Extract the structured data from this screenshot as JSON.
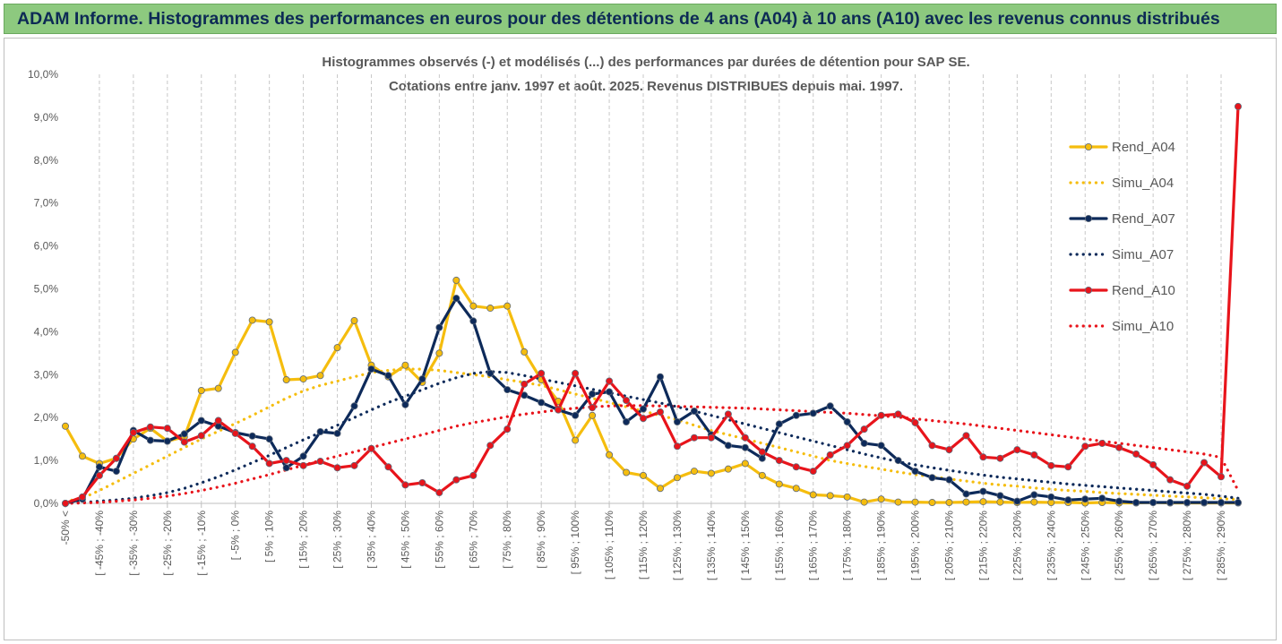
{
  "banner": {
    "title": "ADAM Informe. Histogrammes des performances en euros pour des détentions de 4 ans (A04) à 10 ans (A10) avec les revenus connus distribués"
  },
  "colors": {
    "banner_bg": "#8dc97f",
    "banner_text": "#0d2a55",
    "A04": "#f5bd0e",
    "A07": "#0d2a5a",
    "A10": "#e8141b"
  },
  "chart_data": {
    "type": "line",
    "title_lines": [
      "Histogrammes observés (-) et modélisés (...) des performances par durées de détention pour SAP SE.",
      "Cotations entre janv. 1997 et août. 2025. Revenus DISTRIBUES depuis mai. 1997."
    ],
    "xlabel": "",
    "ylabel": "",
    "ylim": [
      0,
      10
    ],
    "y_ticks": [
      "0,0%",
      "1,0%",
      "2,0%",
      "3,0%",
      "4,0%",
      "5,0%",
      "6,0%",
      "7,0%",
      "8,0%",
      "9,0%",
      "10,0%"
    ],
    "grid": "vertical dashed",
    "legend_position": "right",
    "x_tick_labels": [
      "-50% <",
      "[ -45% ; -40%",
      "[ -35% ; -30%",
      "[ -25% ; -20%",
      "[ -15% ; -10%",
      "[ -5% ; 0%",
      "[ 5% ; 10%",
      "[ 15% ; 20%",
      "[ 25% ; 30%",
      "[ 35% ; 40%",
      "[ 45% ; 50%",
      "[ 55% ; 60%",
      "[ 65% ; 70%",
      "[ 75% ; 80%",
      "[ 85% ; 90%",
      "[ 95% ; 100%",
      "[ 105% ; 110%",
      "[ 115% ; 120%",
      "[ 125% ; 130%",
      "[ 135% ; 140%",
      "[ 145% ; 150%",
      "[ 155% ; 160%",
      "[ 165% ; 170%",
      "[ 175% ; 180%",
      "[ 185% ; 190%",
      "[ 195% ; 200%",
      "[ 205% ; 210%",
      "[ 215% ; 220%",
      "[ 225% ; 230%",
      "[ 235% ; 240%",
      "[ 245% ; 250%",
      "[ 255% ; 260%",
      "[ 265% ; 270%",
      "[ 275% ; 280%",
      "[ 285% ; 290%"
    ],
    "series": [
      {
        "name": "Rend_A04",
        "style": "solid",
        "marker": true,
        "color": "#f5bd0e",
        "values": [
          1.8,
          1.1,
          0.93,
          1.05,
          1.5,
          1.75,
          1.45,
          1.55,
          2.63,
          2.68,
          3.52,
          4.27,
          4.23,
          2.88,
          2.9,
          2.98,
          3.63,
          4.26,
          3.22,
          2.95,
          3.22,
          2.82,
          3.5,
          5.2,
          4.6,
          4.55,
          4.6,
          3.53,
          2.88,
          2.38,
          1.47,
          2.05,
          1.13,
          0.72,
          0.65,
          0.35,
          0.6,
          0.75,
          0.7,
          0.8,
          0.93,
          0.65,
          0.45,
          0.35,
          0.2,
          0.18,
          0.15,
          0.03,
          0.1,
          0.03,
          0.03,
          0.02,
          0.02,
          0.03,
          0.04,
          0.03,
          0.02,
          0.03,
          0.02,
          0.02,
          0.01,
          0.02,
          0.01,
          0.01,
          0.02,
          0.01,
          0.01,
          0.01,
          0.01,
          0.01
        ]
      },
      {
        "name": "Simu_A04",
        "style": "dotted",
        "marker": false,
        "color": "#f5bd0e",
        "values": [
          0.05,
          0.12,
          0.3,
          0.5,
          0.7,
          0.9,
          1.1,
          1.3,
          1.5,
          1.68,
          1.86,
          2.05,
          2.25,
          2.45,
          2.62,
          2.75,
          2.85,
          2.95,
          3.05,
          3.1,
          3.13,
          3.13,
          3.1,
          3.05,
          3.0,
          2.95,
          2.88,
          2.82,
          2.75,
          2.65,
          2.55,
          2.45,
          2.35,
          2.25,
          2.15,
          2.05,
          1.95,
          1.82,
          1.7,
          1.6,
          1.5,
          1.4,
          1.3,
          1.2,
          1.1,
          1.0,
          0.93,
          0.86,
          0.8,
          0.73,
          0.67,
          0.62,
          0.57,
          0.52,
          0.47,
          0.43,
          0.4,
          0.36,
          0.33,
          0.3,
          0.28,
          0.25,
          0.23,
          0.21,
          0.19,
          0.17,
          0.15,
          0.13,
          0.11,
          0.09
        ]
      },
      {
        "name": "Rend_A07",
        "style": "solid",
        "marker": true,
        "color": "#0d2a5a",
        "values": [
          0.0,
          0.1,
          0.85,
          0.75,
          1.7,
          1.47,
          1.45,
          1.62,
          1.93,
          1.8,
          1.65,
          1.57,
          1.5,
          0.83,
          1.1,
          1.67,
          1.63,
          2.27,
          3.13,
          2.98,
          2.3,
          2.9,
          4.1,
          4.78,
          4.25,
          3.03,
          2.65,
          2.52,
          2.35,
          2.18,
          2.05,
          2.55,
          2.6,
          1.9,
          2.2,
          2.95,
          1.9,
          2.15,
          1.6,
          1.35,
          1.3,
          1.05,
          1.85,
          2.05,
          2.1,
          2.27,
          1.9,
          1.4,
          1.35,
          1.0,
          0.75,
          0.6,
          0.55,
          0.22,
          0.28,
          0.18,
          0.05,
          0.2,
          0.15,
          0.08,
          0.1,
          0.12,
          0.05,
          0.02,
          0.02,
          0.02,
          0.02,
          0.02,
          0.02,
          0.02
        ]
      },
      {
        "name": "Simu_A07",
        "style": "dotted",
        "marker": false,
        "color": "#0d2a5a",
        "values": [
          0.0,
          0.02,
          0.05,
          0.08,
          0.12,
          0.18,
          0.25,
          0.35,
          0.48,
          0.62,
          0.78,
          0.95,
          1.12,
          1.3,
          1.48,
          1.65,
          1.82,
          2.0,
          2.18,
          2.35,
          2.5,
          2.65,
          2.8,
          2.93,
          3.03,
          3.07,
          3.05,
          2.98,
          2.9,
          2.82,
          2.74,
          2.66,
          2.58,
          2.5,
          2.42,
          2.34,
          2.25,
          2.15,
          2.05,
          1.95,
          1.85,
          1.75,
          1.65,
          1.55,
          1.45,
          1.35,
          1.25,
          1.15,
          1.06,
          0.97,
          0.9,
          0.83,
          0.77,
          0.71,
          0.66,
          0.61,
          0.57,
          0.53,
          0.49,
          0.45,
          0.42,
          0.39,
          0.36,
          0.33,
          0.3,
          0.27,
          0.24,
          0.21,
          0.17,
          0.12
        ]
      },
      {
        "name": "Rend_A10",
        "style": "solid",
        "marker": true,
        "color": "#e8141b",
        "values": [
          0.0,
          0.15,
          0.65,
          1.05,
          1.65,
          1.78,
          1.75,
          1.43,
          1.58,
          1.93,
          1.63,
          1.33,
          0.93,
          1.0,
          0.88,
          0.98,
          0.83,
          0.88,
          1.28,
          0.85,
          0.43,
          0.48,
          0.25,
          0.55,
          0.65,
          1.35,
          1.73,
          2.78,
          3.03,
          2.18,
          3.03,
          2.23,
          2.85,
          2.4,
          1.98,
          2.13,
          1.33,
          1.53,
          1.53,
          2.08,
          1.53,
          1.2,
          1.0,
          0.85,
          0.75,
          1.13,
          1.35,
          1.73,
          2.05,
          2.08,
          1.88,
          1.35,
          1.25,
          1.58,
          1.08,
          1.05,
          1.25,
          1.13,
          0.88,
          0.85,
          1.33,
          1.4,
          1.3,
          1.15,
          0.9,
          0.55,
          0.4,
          0.95,
          0.62,
          9.25
        ]
      },
      {
        "name": "Simu_A10",
        "style": "dotted",
        "marker": false,
        "color": "#e8141b",
        "values": [
          0.0,
          0.01,
          0.02,
          0.05,
          0.08,
          0.12,
          0.17,
          0.23,
          0.3,
          0.38,
          0.47,
          0.57,
          0.67,
          0.78,
          0.89,
          1.0,
          1.1,
          1.2,
          1.3,
          1.4,
          1.5,
          1.6,
          1.7,
          1.8,
          1.88,
          1.95,
          2.02,
          2.08,
          2.13,
          2.18,
          2.22,
          2.25,
          2.27,
          2.28,
          2.28,
          2.27,
          2.26,
          2.25,
          2.24,
          2.23,
          2.22,
          2.2,
          2.18,
          2.16,
          2.14,
          2.12,
          2.1,
          2.07,
          2.04,
          2.01,
          1.97,
          1.93,
          1.89,
          1.85,
          1.8,
          1.75,
          1.7,
          1.65,
          1.6,
          1.55,
          1.5,
          1.45,
          1.4,
          1.35,
          1.3,
          1.25,
          1.2,
          1.15,
          1.07,
          0.3
        ]
      }
    ]
  }
}
